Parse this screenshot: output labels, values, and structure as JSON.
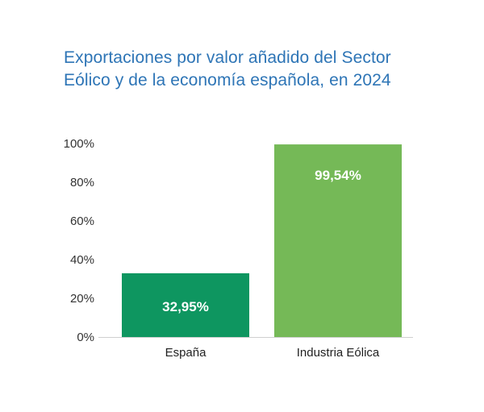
{
  "chart_data": {
    "type": "bar",
    "title_lines": [
      "Exportaciones por valor añadido del Sector",
      "Eólico y de la economía española, en 2024"
    ],
    "categories": [
      "España",
      "Industria Eólica"
    ],
    "values": [
      32.95,
      99.54
    ],
    "data_labels": [
      "32,95%",
      "99,54%"
    ],
    "bar_colors": [
      "#0E9660",
      "#75B957"
    ],
    "ylim": [
      0,
      100
    ],
    "yticks": [
      0,
      20,
      40,
      60,
      80,
      100
    ],
    "ytick_labels": [
      "0%",
      "20%",
      "40%",
      "60%",
      "80%",
      "100%"
    ],
    "xlabel": "",
    "ylabel": "",
    "grid": false
  }
}
